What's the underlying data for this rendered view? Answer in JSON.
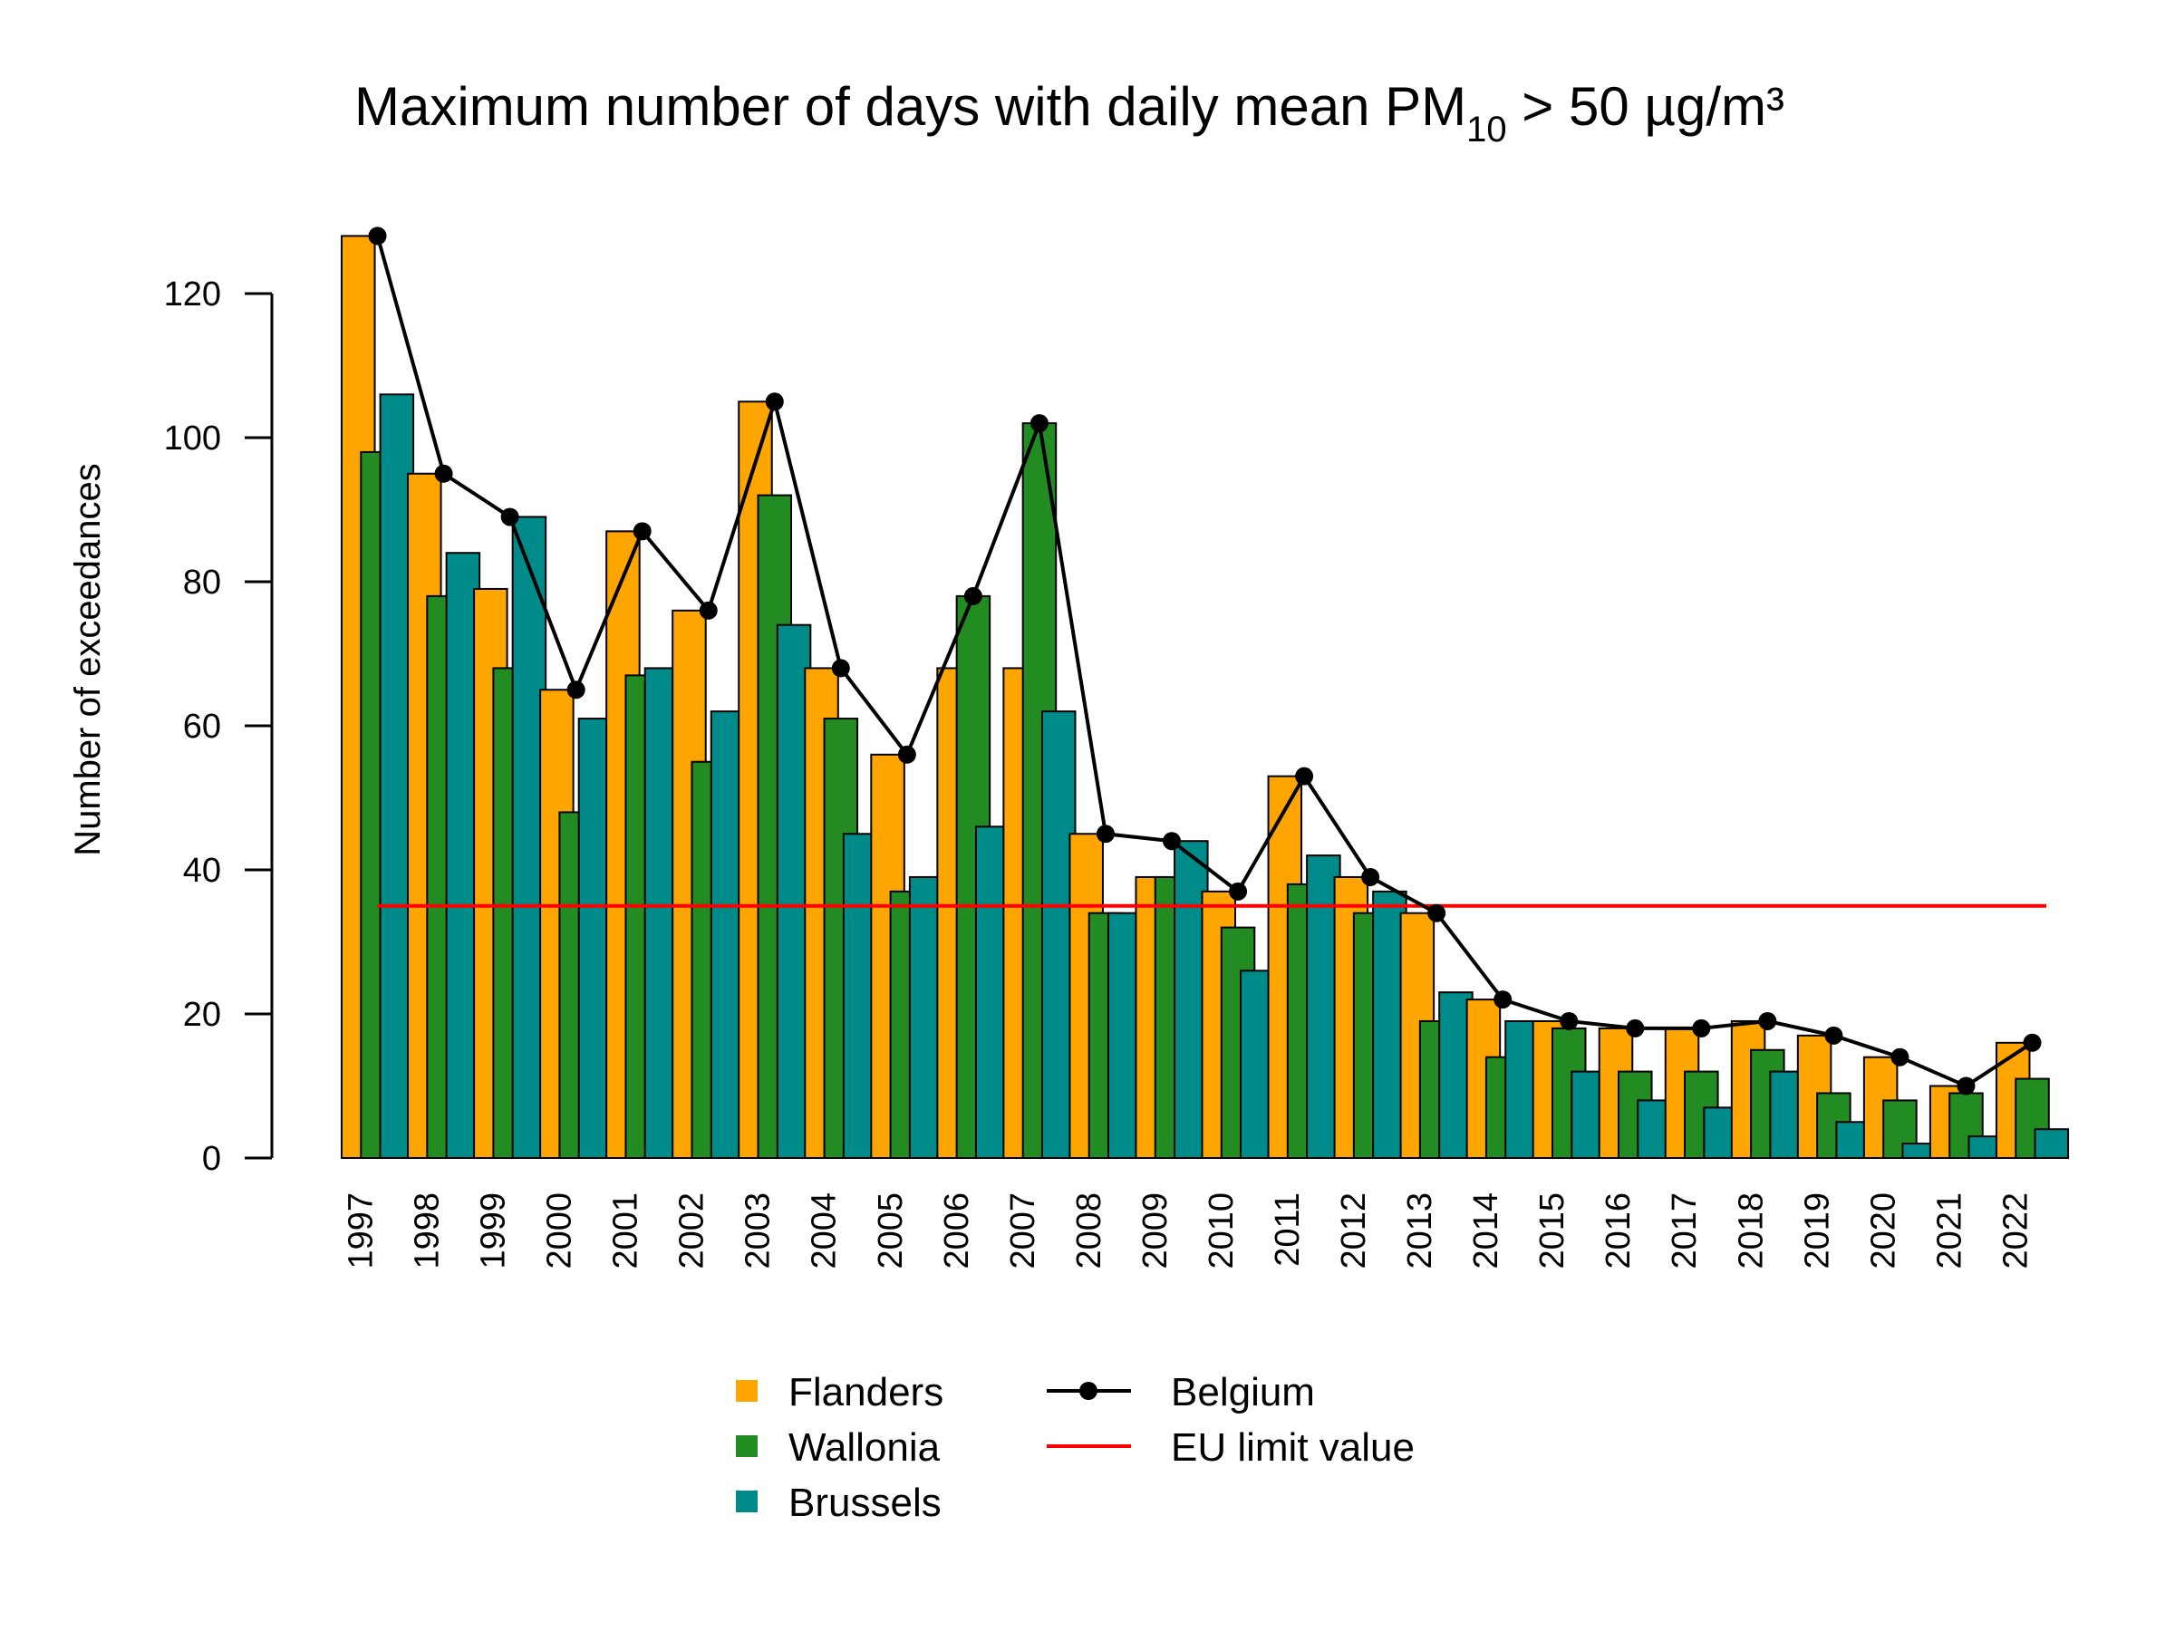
{
  "chart_data": {
    "type": "bar",
    "title": {
      "main": "Maximum number of days with daily mean PM",
      "sub": "10",
      "tail": " > 50 µg/m³"
    },
    "ylabel": "Number of exceedances",
    "xlabel": "",
    "ylim": [
      0,
      128
    ],
    "yticks": [
      "0",
      "20",
      "40",
      "60",
      "80",
      "100",
      "120"
    ],
    "categories": [
      "1997",
      "1998",
      "1999",
      "2000",
      "2001",
      "2002",
      "2003",
      "2004",
      "2005",
      "2006",
      "2007",
      "2008",
      "2009",
      "2010",
      "2011",
      "2012",
      "2013",
      "2014",
      "2015",
      "2016",
      "2017",
      "2018",
      "2019",
      "2020",
      "2021",
      "2022"
    ],
    "series": [
      {
        "name": "Flanders",
        "type": "bar",
        "color": "#FFA500",
        "values": [
          128,
          95,
          79,
          65,
          87,
          76,
          105,
          68,
          56,
          68,
          68,
          45,
          39,
          37,
          53,
          39,
          34,
          22,
          19,
          18,
          18,
          19,
          17,
          14,
          10,
          16
        ]
      },
      {
        "name": "Wallonia",
        "type": "bar",
        "color": "#228B22",
        "values": [
          98,
          78,
          68,
          48,
          67,
          55,
          92,
          61,
          37,
          78,
          102,
          34,
          39,
          32,
          38,
          34,
          19,
          14,
          18,
          12,
          12,
          15,
          9,
          8,
          9,
          11
        ]
      },
      {
        "name": "Brussels",
        "type": "bar",
        "color": "#008B8B",
        "values": [
          106,
          84,
          89,
          61,
          68,
          62,
          74,
          45,
          39,
          46,
          62,
          34,
          44,
          26,
          42,
          37,
          23,
          19,
          12,
          8,
          7,
          12,
          5,
          2,
          3,
          4
        ]
      },
      {
        "name": "Belgium",
        "type": "line",
        "color": "#000000",
        "values": [
          128,
          95,
          89,
          65,
          87,
          76,
          105,
          68,
          56,
          78,
          102,
          45,
          44,
          37,
          53,
          39,
          34,
          22,
          19,
          18,
          18,
          19,
          17,
          14,
          10,
          16
        ]
      }
    ],
    "reference_line": {
      "name": "EU limit value",
      "value": 35,
      "color": "#FF0000"
    },
    "legend": {
      "placement": "bottom",
      "items": [
        {
          "label": "Flanders",
          "kind": "box",
          "color": "#FFA500"
        },
        {
          "label": "Wallonia",
          "kind": "box",
          "color": "#228B22"
        },
        {
          "label": "Brussels",
          "kind": "box",
          "color": "#008B8B"
        },
        {
          "label": "Belgium",
          "kind": "line-point",
          "color": "#000000"
        },
        {
          "label": "EU limit value",
          "kind": "line",
          "color": "#FF0000"
        }
      ]
    },
    "grid": false
  }
}
